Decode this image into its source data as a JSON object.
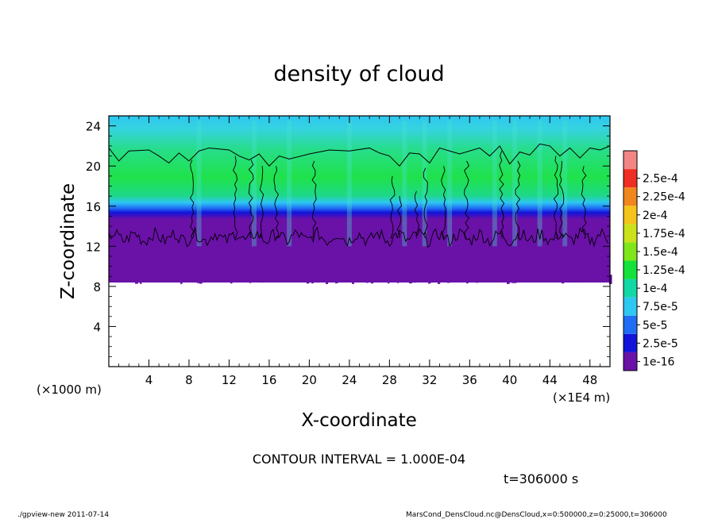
{
  "chart_data": {
    "type": "heatmap",
    "title": "density of cloud",
    "xlabel": "X-coordinate",
    "ylabel": "Z-coordinate",
    "x_unit_left": "(×1000 m)",
    "x_unit_right": "(×1E4 m)",
    "xlim": [
      0,
      50
    ],
    "ylim": [
      0,
      25
    ],
    "x_ticks": [
      4,
      8,
      12,
      16,
      20,
      24,
      28,
      32,
      36,
      40,
      44,
      48
    ],
    "y_ticks": [
      4,
      8,
      12,
      16,
      20,
      24
    ],
    "colorbar": {
      "labels": [
        "1e-16",
        "2.5e-5",
        "5e-5",
        "7.5e-5",
        "1e-4",
        "1.25e-4",
        "1.5e-4",
        "1.75e-4",
        "2e-4",
        "2.25e-4",
        "2.5e-4"
      ],
      "colors": [
        "#6a11a8",
        "#1313d9",
        "#1f6cf5",
        "#2ec7f2",
        "#13d7a5",
        "#14e23b",
        "#7fe61a",
        "#cbe11a",
        "#f4c41a",
        "#f1861c",
        "#ee2e24",
        "#f38585"
      ]
    },
    "contour_interval": "CONTOUR INTERVAL = 1.000E-04",
    "time_label": "t=306000 s"
  },
  "footer": {
    "left": "./gpview-new  2011-07-14",
    "right": "MarsCond_DensCloud.nc@DensCloud,x=0:500000,z=0:25000,t=306000"
  }
}
